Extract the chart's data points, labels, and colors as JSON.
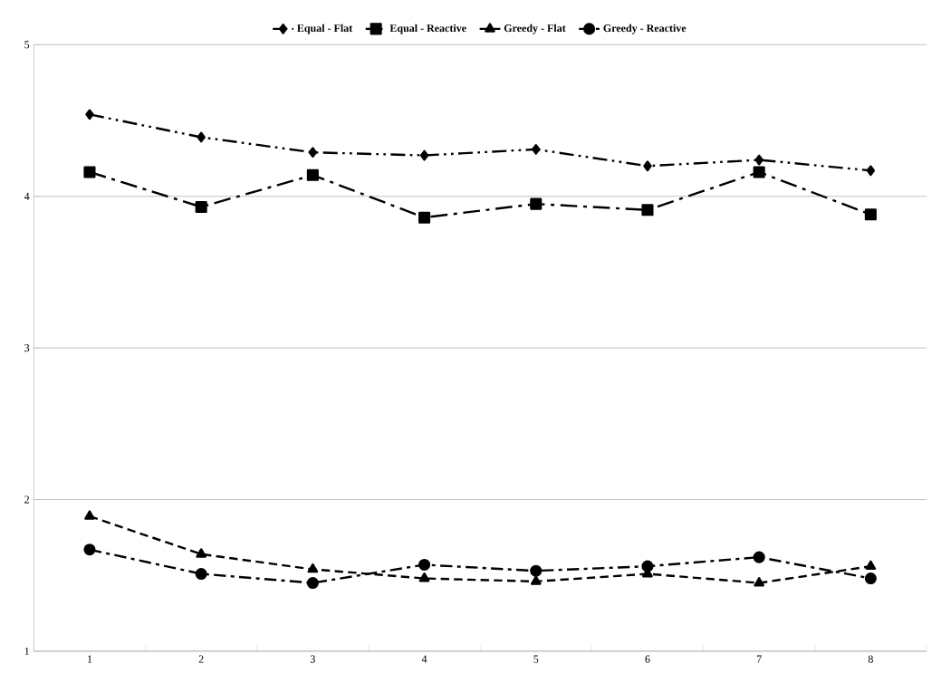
{
  "chart_data": {
    "type": "line",
    "categories": [
      "1",
      "2",
      "3",
      "4",
      "5",
      "6",
      "7",
      "8"
    ],
    "ylim": [
      1,
      5
    ],
    "yticks": [
      1,
      2,
      3,
      4,
      5
    ],
    "grid": "y",
    "legend": "top",
    "series": [
      {
        "name": "Equal - Flat",
        "color": "#000000",
        "marker": "diamond",
        "line_style": "dashed",
        "values": [
          4.54,
          4.39,
          4.29,
          4.27,
          4.31,
          4.2,
          4.24,
          4.17
        ]
      },
      {
        "name": "Equal - Reactive",
        "color": "#000000",
        "marker": "square",
        "line_style": "dashed",
        "values": [
          4.16,
          3.93,
          4.14,
          3.86,
          3.95,
          3.91,
          4.16,
          3.88
        ]
      },
      {
        "name": "Greedy - Flat",
        "color": "#000000",
        "marker": "triangle",
        "line_style": "dashed",
        "values": [
          1.89,
          1.64,
          1.54,
          1.48,
          1.46,
          1.51,
          1.45,
          1.56
        ]
      },
      {
        "name": "Greedy - Reactive",
        "color": "#000000",
        "marker": "circle",
        "line_style": "dashed",
        "values": [
          1.67,
          1.51,
          1.45,
          1.57,
          1.53,
          1.56,
          1.62,
          1.48
        ]
      }
    ]
  }
}
